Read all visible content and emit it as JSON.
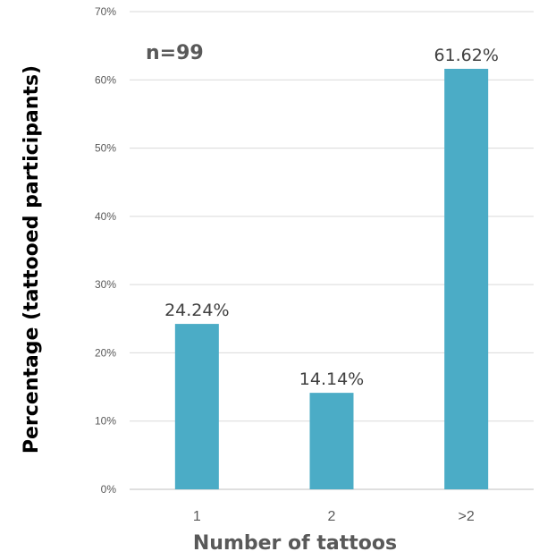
{
  "chart_data": {
    "type": "bar",
    "categories": [
      "1",
      "2",
      ">2"
    ],
    "values": [
      24.24,
      14.14,
      61.62
    ],
    "data_labels": [
      "24.24%",
      "14.14%",
      "61.62%"
    ],
    "ylim": [
      0,
      70
    ],
    "yticks": [
      0,
      10,
      20,
      30,
      40,
      50,
      60,
      70
    ],
    "ytick_labels": [
      "0%",
      "10%",
      "20%",
      "30%",
      "40%",
      "50%",
      "60%",
      "70%"
    ],
    "xlabel": "Number of tattoos",
    "ylabel": "Percentage (tattooed participants)",
    "annotation": "n=99",
    "grid": true,
    "bar_color": "#4bacc6"
  }
}
